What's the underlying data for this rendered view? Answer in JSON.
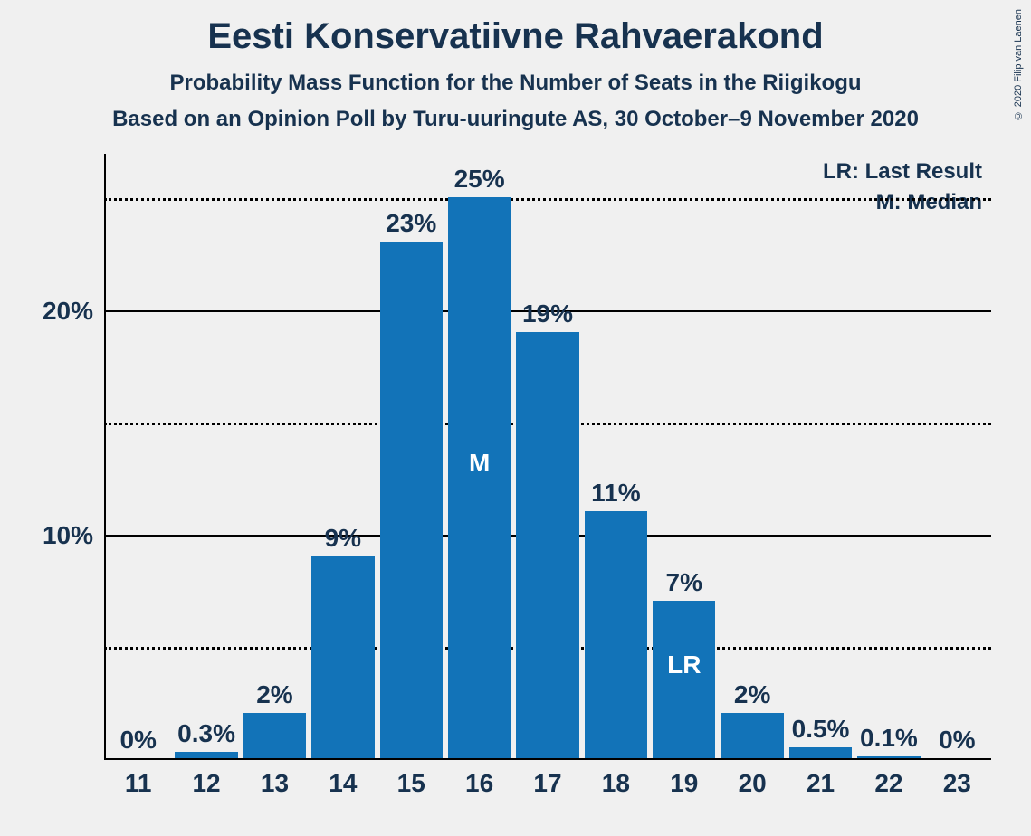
{
  "title": "Eesti Konservatiivne Rahvaerakond",
  "subtitle1": "Probability Mass Function for the Number of Seats in the Riigikogu",
  "subtitle2": "Based on an Opinion Poll by Turu-uuringute AS, 30 October–9 November 2020",
  "copyright": "© 2020 Filip van Laenen",
  "legend": {
    "lr": "LR: Last Result",
    "m": "M: Median"
  },
  "chart": {
    "type": "bar",
    "background_color": "#f0f0f0",
    "bar_color": "#1273b8",
    "text_color": "#17324f",
    "axis_color": "#000000",
    "grid_solid_color": "#000000",
    "grid_dotted_color": "#000000",
    "title_fontsize": 40,
    "subtitle_fontsize": 24,
    "tick_fontsize": 28,
    "label_fontsize": 28,
    "legend_fontsize": 24,
    "bar_width_ratio": 0.92,
    "ylim": [
      0,
      27
    ],
    "y_major_ticks": [
      10,
      20
    ],
    "y_minor_ticks": [
      5,
      15,
      25
    ],
    "categories": [
      11,
      12,
      13,
      14,
      15,
      16,
      17,
      18,
      19,
      20,
      21,
      22,
      23
    ],
    "values": [
      0,
      0.3,
      2,
      9,
      23,
      25,
      19,
      11,
      7,
      2,
      0.5,
      0.1,
      0
    ],
    "value_labels": [
      "0%",
      "0.3%",
      "2%",
      "9%",
      "23%",
      "25%",
      "19%",
      "11%",
      "7%",
      "2%",
      "0.5%",
      "0.1%",
      "0%"
    ],
    "median_index": 5,
    "median_label": "M",
    "last_result_index": 8,
    "last_result_label": "LR"
  }
}
